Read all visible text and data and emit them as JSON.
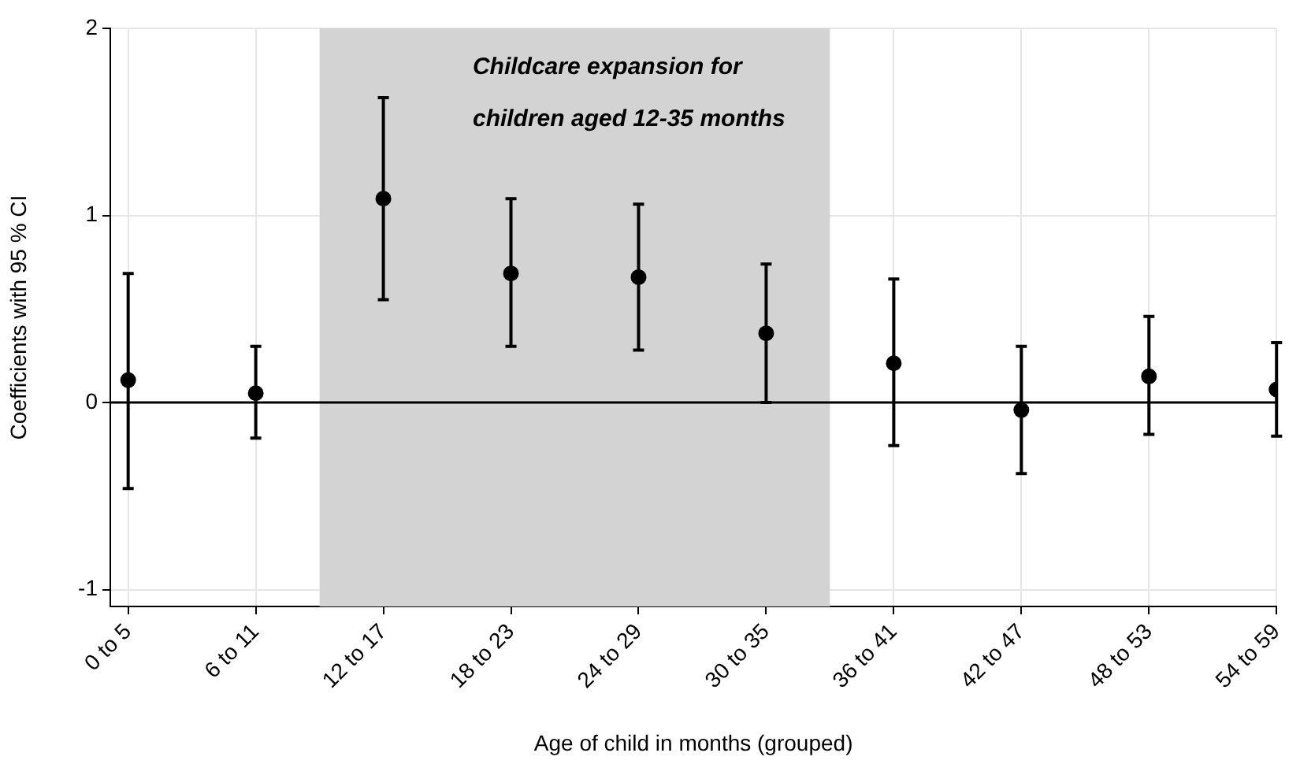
{
  "chart_data": {
    "type": "scatter",
    "xlabel": "Age of child in months (grouped)",
    "ylabel": "Coefficients with 95 % CI",
    "categories": [
      "0 to 5",
      "6 to 11",
      "12 to 17",
      "18 to 23",
      "24 to 29",
      "30 to 35",
      "36 to 41",
      "42 to 47",
      "48 to 53",
      "54 to 59"
    ],
    "series": [
      {
        "color": "#000000",
        "values": [
          0.12,
          0.05,
          1.09,
          0.69,
          0.67,
          0.37,
          0.21,
          -0.04,
          0.14,
          0.07
        ],
        "errors": [
          [
            -0.46,
            0.69
          ],
          [
            -0.19,
            0.3
          ],
          [
            0.55,
            1.63
          ],
          [
            0.3,
            1.09
          ],
          [
            0.28,
            1.06
          ],
          [
            0.0,
            0.74
          ],
          [
            -0.23,
            0.66
          ],
          [
            -0.38,
            0.3
          ],
          [
            -0.17,
            0.46
          ],
          [
            -0.18,
            0.32
          ]
        ]
      }
    ],
    "ylim": [
      -1.09,
      2
    ],
    "yticks": [
      -1,
      0,
      1,
      2
    ],
    "ref_lines": [
      {
        "axis": "y",
        "value": 0,
        "color": "#000000",
        "line_style": "solid"
      }
    ],
    "bands": [
      {
        "axis": "x",
        "from": "12 to 17",
        "to": "30 to 35",
        "label": "Childcare expansion for children aged 12-35 months",
        "color": "#d3d3d3"
      }
    ],
    "grid": true,
    "marker": "circle",
    "legend": false
  }
}
